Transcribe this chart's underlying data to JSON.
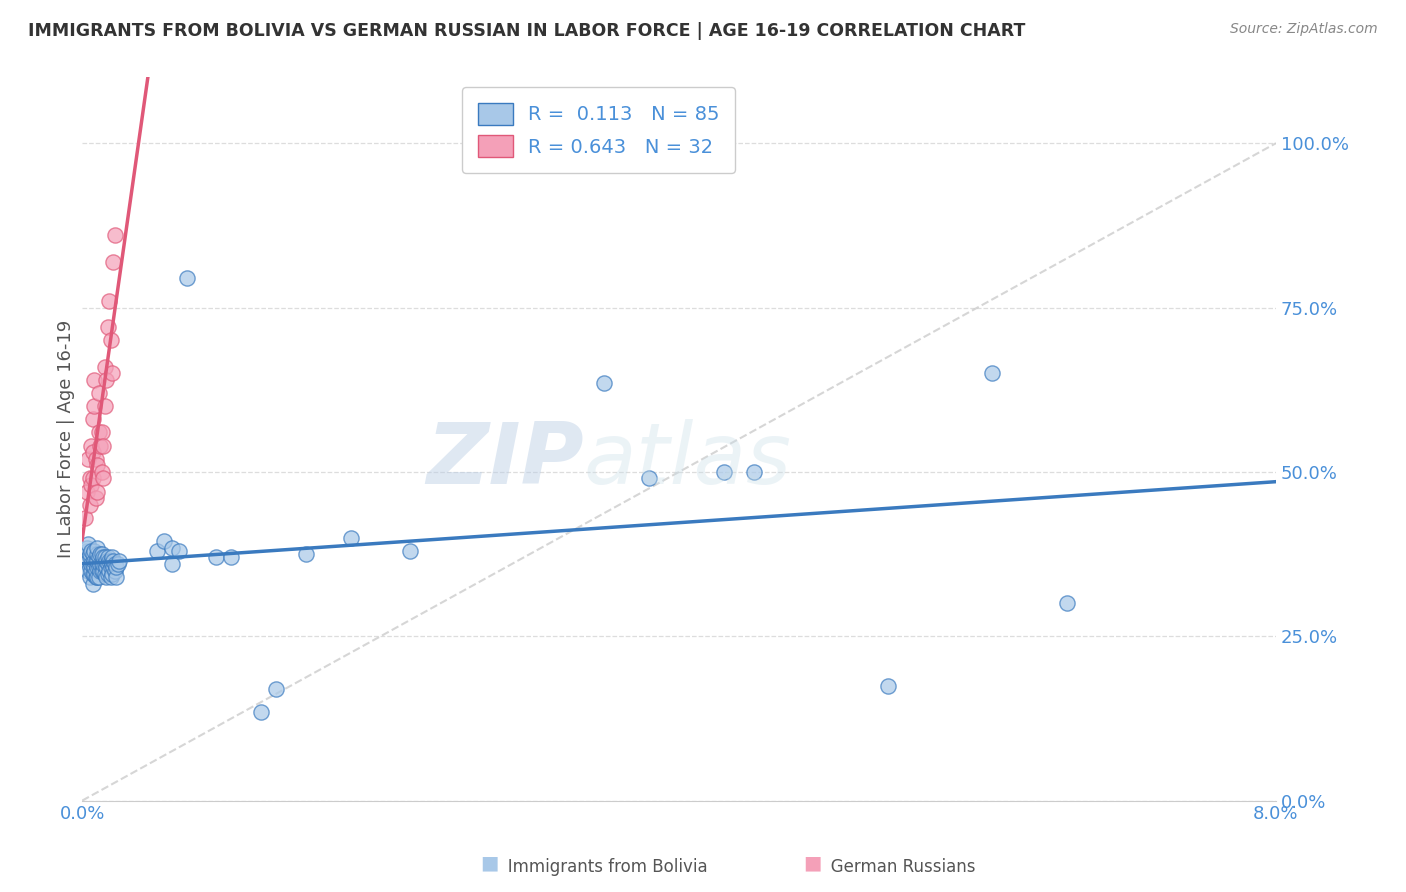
{
  "title": "IMMIGRANTS FROM BOLIVIA VS GERMAN RUSSIAN IN LABOR FORCE | AGE 16-19 CORRELATION CHART",
  "source": "Source: ZipAtlas.com",
  "ylabel": "In Labor Force | Age 16-19",
  "xlim": [
    0.0,
    0.08
  ],
  "ylim": [
    0.0,
    1.1
  ],
  "bolivia_R": 0.113,
  "bolivia_N": 85,
  "german_R": 0.643,
  "german_N": 32,
  "bolivia_color": "#a8c8e8",
  "german_color": "#f4a0b8",
  "bolivia_line_color": "#3a7abf",
  "german_line_color": "#e05878",
  "diagonal_color": "#cccccc",
  "legend_label_bolivia": "Immigrants from Bolivia",
  "legend_label_german": "German Russians",
  "watermark_zip": "ZIP",
  "watermark_atlas": "atlas",
  "bolivia_x": [
    0.0002,
    0.0003,
    0.0003,
    0.0004,
    0.0004,
    0.0005,
    0.0005,
    0.0005,
    0.0005,
    0.0006,
    0.0006,
    0.0006,
    0.0007,
    0.0007,
    0.0007,
    0.0007,
    0.0008,
    0.0008,
    0.0008,
    0.0008,
    0.0009,
    0.0009,
    0.0009,
    0.001,
    0.001,
    0.001,
    0.001,
    0.001,
    0.0011,
    0.0011,
    0.0011,
    0.0012,
    0.0012,
    0.0012,
    0.0013,
    0.0013,
    0.0013,
    0.0014,
    0.0014,
    0.0014,
    0.0015,
    0.0015,
    0.0015,
    0.0016,
    0.0016,
    0.0016,
    0.0017,
    0.0017,
    0.0017,
    0.0018,
    0.0018,
    0.0019,
    0.0019,
    0.0019,
    0.002,
    0.002,
    0.002,
    0.0021,
    0.0021,
    0.0022,
    0.0022,
    0.0023,
    0.0023,
    0.0024,
    0.0025,
    0.005,
    0.0055,
    0.006,
    0.006,
    0.0065,
    0.007,
    0.009,
    0.01,
    0.012,
    0.013,
    0.015,
    0.018,
    0.022,
    0.035,
    0.038,
    0.043,
    0.045,
    0.054,
    0.061,
    0.066
  ],
  "bolivia_y": [
    0.37,
    0.38,
    0.385,
    0.35,
    0.39,
    0.34,
    0.355,
    0.37,
    0.375,
    0.35,
    0.36,
    0.38,
    0.33,
    0.345,
    0.36,
    0.375,
    0.345,
    0.355,
    0.365,
    0.38,
    0.34,
    0.35,
    0.365,
    0.34,
    0.355,
    0.365,
    0.375,
    0.385,
    0.34,
    0.355,
    0.37,
    0.35,
    0.36,
    0.375,
    0.35,
    0.36,
    0.375,
    0.35,
    0.36,
    0.37,
    0.345,
    0.36,
    0.37,
    0.34,
    0.355,
    0.365,
    0.345,
    0.36,
    0.37,
    0.35,
    0.365,
    0.34,
    0.355,
    0.365,
    0.345,
    0.36,
    0.37,
    0.355,
    0.365,
    0.35,
    0.36,
    0.34,
    0.355,
    0.36,
    0.365,
    0.38,
    0.395,
    0.385,
    0.36,
    0.38,
    0.795,
    0.37,
    0.37,
    0.135,
    0.17,
    0.375,
    0.4,
    0.38,
    0.635,
    0.49,
    0.5,
    0.5,
    0.175,
    0.65,
    0.3
  ],
  "german_x": [
    0.0002,
    0.0003,
    0.0004,
    0.0005,
    0.0005,
    0.0006,
    0.0006,
    0.0007,
    0.0007,
    0.0007,
    0.0008,
    0.0008,
    0.0009,
    0.0009,
    0.001,
    0.001,
    0.0011,
    0.0011,
    0.0012,
    0.0013,
    0.0013,
    0.0014,
    0.0014,
    0.0015,
    0.0015,
    0.0016,
    0.0017,
    0.0018,
    0.0019,
    0.002,
    0.0021,
    0.0022
  ],
  "german_y": [
    0.43,
    0.47,
    0.52,
    0.45,
    0.49,
    0.48,
    0.54,
    0.49,
    0.53,
    0.58,
    0.6,
    0.64,
    0.46,
    0.52,
    0.47,
    0.51,
    0.56,
    0.62,
    0.54,
    0.5,
    0.56,
    0.49,
    0.54,
    0.6,
    0.66,
    0.64,
    0.72,
    0.76,
    0.7,
    0.65,
    0.82,
    0.86
  ]
}
